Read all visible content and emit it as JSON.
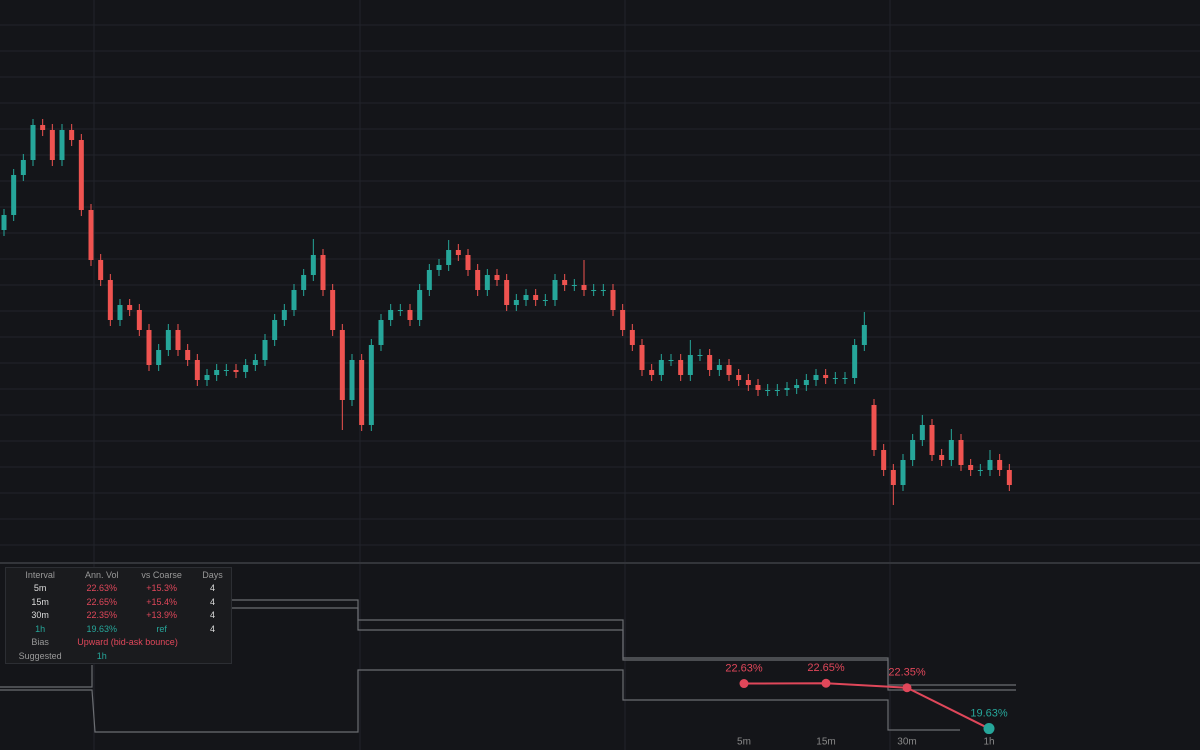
{
  "chart_data": [
    {
      "type": "candlestick",
      "ylim": [
        0,
        560
      ],
      "up_color": "#26a69a",
      "down_color": "#ef5350",
      "ohlc": [
        [
          330,
          351,
          324,
          345
        ],
        [
          345,
          391,
          339,
          385
        ],
        [
          385,
          406,
          379,
          400
        ],
        [
          400,
          441,
          394,
          435
        ],
        [
          435,
          441,
          424,
          430
        ],
        [
          430,
          436,
          394,
          400
        ],
        [
          400,
          436,
          394,
          430
        ],
        [
          430,
          436,
          414,
          420
        ],
        [
          420,
          426,
          344,
          350
        ],
        [
          350,
          356,
          294,
          300
        ],
        [
          300,
          306,
          274,
          280
        ],
        [
          280,
          286,
          234,
          240
        ],
        [
          240,
          261,
          234,
          255
        ],
        [
          255,
          261,
          244,
          250
        ],
        [
          250,
          256,
          224,
          230
        ],
        [
          230,
          236,
          189,
          195
        ],
        [
          195,
          216,
          189,
          210
        ],
        [
          210,
          236,
          204,
          230
        ],
        [
          230,
          236,
          204,
          210
        ],
        [
          210,
          216,
          194,
          200
        ],
        [
          200,
          206,
          174,
          180
        ],
        [
          180,
          191,
          174,
          185
        ],
        [
          185,
          196,
          179,
          190
        ],
        [
          190,
          196,
          184,
          190
        ],
        [
          190,
          196,
          182,
          188
        ],
        [
          188,
          201,
          182,
          195
        ],
        [
          195,
          206,
          189,
          200
        ],
        [
          200,
          226,
          194,
          220
        ],
        [
          220,
          246,
          214,
          240
        ],
        [
          240,
          256,
          234,
          250
        ],
        [
          250,
          276,
          244,
          270
        ],
        [
          270,
          291,
          264,
          285
        ],
        [
          285,
          321,
          279,
          305
        ],
        [
          305,
          311,
          264,
          270
        ],
        [
          270,
          276,
          224,
          230
        ],
        [
          230,
          236,
          130,
          160
        ],
        [
          160,
          206,
          154,
          200
        ],
        [
          200,
          206,
          129,
          135
        ],
        [
          135,
          221,
          129,
          215
        ],
        [
          215,
          246,
          209,
          240
        ],
        [
          240,
          256,
          234,
          250
        ],
        [
          250,
          256,
          244,
          250
        ],
        [
          250,
          256,
          234,
          240
        ],
        [
          240,
          276,
          234,
          270
        ],
        [
          270,
          296,
          264,
          290
        ],
        [
          290,
          301,
          284,
          295
        ],
        [
          295,
          320,
          289,
          310
        ],
        [
          310,
          316,
          299,
          305
        ],
        [
          305,
          311,
          284,
          290
        ],
        [
          290,
          296,
          264,
          270
        ],
        [
          270,
          291,
          264,
          285
        ],
        [
          285,
          291,
          274,
          280
        ],
        [
          280,
          286,
          249,
          255
        ],
        [
          255,
          266,
          249,
          260
        ],
        [
          260,
          271,
          254,
          265
        ],
        [
          265,
          271,
          254,
          260
        ],
        [
          260,
          266,
          254,
          260
        ],
        [
          260,
          286,
          254,
          280
        ],
        [
          280,
          286,
          269,
          275
        ],
        [
          275,
          281,
          269,
          275
        ],
        [
          275,
          300,
          264,
          270
        ],
        [
          270,
          276,
          264,
          270
        ],
        [
          270,
          276,
          264,
          270
        ],
        [
          270,
          276,
          244,
          250
        ],
        [
          250,
          256,
          224,
          230
        ],
        [
          230,
          236,
          209,
          215
        ],
        [
          215,
          221,
          184,
          190
        ],
        [
          190,
          196,
          179,
          185
        ],
        [
          185,
          206,
          179,
          200
        ],
        [
          200,
          206,
          194,
          200
        ],
        [
          200,
          206,
          179,
          185
        ],
        [
          185,
          220,
          179,
          205
        ],
        [
          205,
          211,
          199,
          205
        ],
        [
          205,
          211,
          184,
          190
        ],
        [
          190,
          201,
          184,
          195
        ],
        [
          195,
          201,
          179,
          185
        ],
        [
          185,
          191,
          174,
          180
        ],
        [
          180,
          186,
          169,
          175
        ],
        [
          175,
          181,
          164,
          170
        ],
        [
          170,
          176,
          164,
          170
        ],
        [
          170,
          176,
          164,
          170
        ],
        [
          170,
          178,
          164,
          172
        ],
        [
          172,
          181,
          166,
          175
        ],
        [
          175,
          186,
          169,
          180
        ],
        [
          180,
          191,
          174,
          185
        ],
        [
          185,
          191,
          176,
          182
        ],
        [
          182,
          188,
          176,
          182
        ],
        [
          182,
          188,
          176,
          182
        ],
        [
          182,
          221,
          176,
          215
        ],
        [
          215,
          248,
          209,
          235
        ],
        [
          155,
          161,
          104,
          110
        ],
        [
          110,
          116,
          84,
          90
        ],
        [
          90,
          96,
          55,
          75
        ],
        [
          75,
          106,
          69,
          100
        ],
        [
          100,
          126,
          94,
          120
        ],
        [
          120,
          145,
          114,
          135
        ],
        [
          135,
          141,
          99,
          105
        ],
        [
          105,
          111,
          94,
          100
        ],
        [
          100,
          131,
          94,
          120
        ],
        [
          120,
          126,
          89,
          95
        ],
        [
          95,
          101,
          84,
          90
        ],
        [
          90,
          96,
          84,
          90
        ],
        [
          90,
          110,
          84,
          100
        ],
        [
          100,
          106,
          84,
          90
        ],
        [
          90,
          96,
          69,
          75
        ]
      ]
    },
    {
      "type": "line",
      "categories": [
        "5m",
        "15m",
        "30m",
        "1h"
      ],
      "values": [
        22.63,
        22.65,
        22.35,
        19.63
      ],
      "value_labels": [
        "22.63%",
        "22.65%",
        "22.35%",
        "19.63%"
      ],
      "colors": [
        "#e0475a",
        "#e0475a",
        "#e0475a",
        "#26a69a"
      ],
      "line_color": "#e0475a",
      "ylim": [
        19.2,
        23.2
      ]
    }
  ],
  "table": {
    "header": [
      "Interval",
      "Ann. Vol",
      "vs Coarse",
      "Days"
    ],
    "rows": [
      [
        "5m",
        "22.63%",
        "+15.3%",
        "4"
      ],
      [
        "15m",
        "22.65%",
        "+15.4%",
        "4"
      ],
      [
        "30m",
        "22.35%",
        "+13.9%",
        "4"
      ],
      [
        "1h",
        "19.63%",
        "ref",
        "4"
      ]
    ],
    "bias": {
      "label": "Bias",
      "value": "Upward (bid-ask bounce)"
    },
    "suggested": {
      "label": "Suggested",
      "value": "1h"
    }
  }
}
